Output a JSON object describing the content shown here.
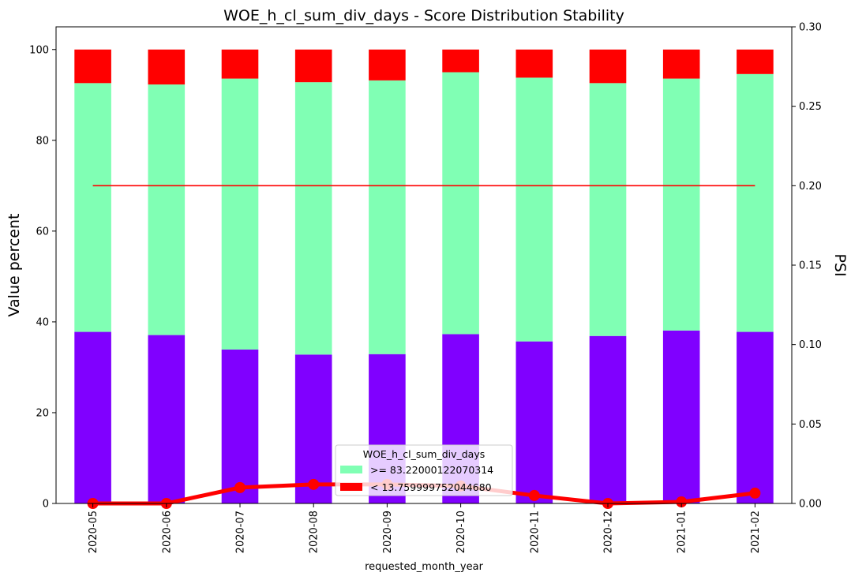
{
  "chart_data": {
    "type": "bar",
    "title": "WOE_h_cl_sum_div_days  - Score Distribution Stability",
    "xlabel": "requested_month_year",
    "ylabel": "Value percent",
    "y2label": "PSI",
    "ylim": [
      0,
      105
    ],
    "y2lim": [
      0,
      0.3
    ],
    "yticks": [
      "0",
      "20",
      "40",
      "60",
      "80",
      "100"
    ],
    "y2ticks": [
      "0.00",
      "0.05",
      "0.10",
      "0.15",
      "0.20",
      "0.25",
      "0.30"
    ],
    "categories": [
      "2020-05",
      "2020-06",
      "2020-07",
      "2020-08",
      "2020-09",
      "2020-10",
      "2020-11",
      "2020-12",
      "2021-01",
      "2021-02"
    ],
    "series": [
      {
        "color": "#8000ff",
        "values": [
          37.8,
          37.1,
          33.9,
          32.8,
          32.9,
          37.3,
          35.7,
          36.9,
          38.1,
          37.8
        ]
      },
      {
        "name": ">= 83.22000122070314",
        "color": "#80ffb4",
        "values": [
          54.8,
          55.2,
          59.7,
          60.0,
          60.3,
          57.7,
          58.1,
          55.7,
          55.5,
          56.8
        ]
      },
      {
        "name": "< 13.759999752044680",
        "color": "#ff0000",
        "values": [
          7.4,
          7.7,
          6.4,
          7.2,
          6.8,
          5.0,
          6.2,
          7.4,
          6.4,
          5.4
        ]
      }
    ],
    "psi": {
      "color": "#ff0000",
      "values": [
        0.0,
        0.0,
        0.01,
        0.012,
        0.012,
        0.011,
        0.005,
        0.0,
        0.001,
        0.0065
      ]
    },
    "threshold": {
      "color": "#ff0000",
      "value": 0.2
    },
    "legend": {
      "title": "WOE_h_cl_sum_div_days",
      "placement": "lower center"
    },
    "grid": false
  }
}
